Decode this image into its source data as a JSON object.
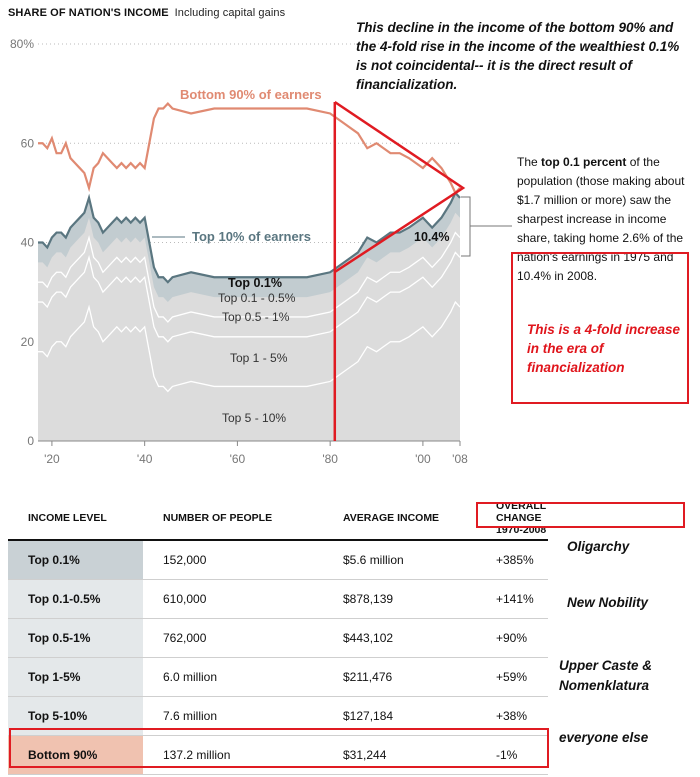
{
  "header": {
    "title": "SHARE OF NATION'S INCOME",
    "subtitle": "Including capital gains"
  },
  "annotation_top": "This decline in the income of the bottom 90% and the 4-fold rise in the income of the wealthiest 0.1% is not coincidental-- it is the direct result of financialization.",
  "note": {
    "lead": "The",
    "bold": "top 0.1 percent",
    "rest": "of the population (those making about $1.7 million or more) saw the sharpest increase in income share, taking home 2.6% of the nation's earnings in 1975 and 10.4% in 2008."
  },
  "red_note": "This is a 4-fold increase in the era of financialization",
  "colors": {
    "bottom90": "#e08a72",
    "top10": "#5a7680",
    "top10_fill": "#c2ccd0",
    "bands": "#dcdcdc",
    "grid": "#bbbbbb",
    "red": "#e01b22",
    "row_top01": "#c9d1d5",
    "row_bottom90": "#f0c2b0"
  },
  "chart_data": {
    "type": "area",
    "title": "SHARE OF NATION'S INCOME",
    "subtitle": "Including capital gains",
    "ylim": [
      0,
      80
    ],
    "yticks": [
      "0",
      "20",
      "40",
      "60",
      "80%"
    ],
    "xlim": [
      1917,
      2008
    ],
    "xticks": [
      "'20",
      "'40",
      "'60",
      "'80",
      "'00",
      "'08"
    ],
    "xtick_years": [
      1920,
      1940,
      1960,
      1980,
      2000,
      2008
    ],
    "annotation_value": "10.4%",
    "marker_year": 1981,
    "series": [
      {
        "name": "Bottom 90% of earners",
        "label": "Bottom 90% of earners",
        "x": [
          1917,
          1918,
          1919,
          1920,
          1921,
          1922,
          1923,
          1924,
          1925,
          1926,
          1927,
          1928,
          1929,
          1930,
          1931,
          1932,
          1933,
          1934,
          1935,
          1936,
          1937,
          1938,
          1939,
          1940,
          1941,
          1942,
          1943,
          1944,
          1945,
          1946,
          1950,
          1955,
          1960,
          1965,
          1970,
          1975,
          1980,
          1983,
          1986,
          1988,
          1990,
          1993,
          1995,
          1997,
          2000,
          2002,
          2004,
          2006,
          2007,
          2008
        ],
        "values": [
          60,
          60,
          59,
          61,
          58,
          58,
          60,
          57,
          56,
          55,
          54,
          51,
          55,
          56,
          58,
          57,
          56,
          55,
          56,
          55,
          56,
          55,
          56,
          55,
          60,
          65,
          67,
          67,
          68,
          67,
          66,
          67,
          67,
          67,
          67,
          67,
          66,
          64,
          62,
          59,
          60,
          58,
          58,
          57,
          55,
          57,
          55,
          52,
          50,
          51
        ]
      },
      {
        "name": "Top 10% of earners",
        "label": "Top 10% of earners",
        "x": [
          1917,
          1918,
          1919,
          1920,
          1921,
          1922,
          1923,
          1924,
          1925,
          1926,
          1927,
          1928,
          1929,
          1930,
          1931,
          1932,
          1933,
          1934,
          1935,
          1936,
          1937,
          1938,
          1939,
          1940,
          1941,
          1942,
          1943,
          1944,
          1945,
          1946,
          1950,
          1955,
          1960,
          1965,
          1970,
          1975,
          1980,
          1983,
          1986,
          1988,
          1990,
          1993,
          1995,
          1997,
          2000,
          2002,
          2004,
          2006,
          2007,
          2008
        ],
        "values": [
          40,
          40,
          39,
          41,
          42,
          42,
          41,
          43,
          44,
          45,
          46,
          49,
          45,
          44,
          42,
          43,
          44,
          45,
          44,
          45,
          44,
          45,
          44,
          45,
          40,
          35,
          33,
          33,
          32,
          33,
          34,
          33,
          33,
          33,
          33,
          33,
          34,
          36,
          38,
          41,
          40,
          42,
          42,
          43,
          45,
          43,
          45,
          48,
          50,
          49
        ]
      },
      {
        "name": "Top 0.1%",
        "label": "Top 0.1%",
        "x": [
          1917,
          1920,
          1925,
          1928,
          1932,
          1940,
          1945,
          1950,
          1960,
          1970,
          1975,
          1980,
          1985,
          1990,
          1995,
          2000,
          2005,
          2008
        ],
        "values": [
          7,
          6,
          8,
          10,
          7,
          5,
          3,
          3,
          3,
          2.8,
          2.6,
          3.4,
          4.5,
          5.5,
          6.5,
          9,
          9.5,
          10.4
        ]
      }
    ],
    "band_labels": [
      "Top 0.1%",
      "Top 0.1 - 0.5%",
      "Top 0.5 - 1%",
      "Top 1 - 5%",
      "Top 5 - 10%"
    ]
  },
  "table": {
    "headers": [
      "INCOME LEVEL",
      "NUMBER OF PEOPLE",
      "AVERAGE INCOME",
      "OVERALL CHANGE 1970-2008"
    ],
    "rows": [
      {
        "level": "Top 0.1%",
        "people": "152,000",
        "income": "$5.6 million",
        "change": "+385%"
      },
      {
        "level": "Top 0.1-0.5%",
        "people": "610,000",
        "income": "$878,139",
        "change": "+141%"
      },
      {
        "level": "Top 0.5-1%",
        "people": "762,000",
        "income": "$443,102",
        "change": "+90%"
      },
      {
        "level": "Top 1-5%",
        "people": "6.0 million",
        "income": "$211,476",
        "change": "+59%"
      },
      {
        "level": "Top 5-10%",
        "people": "7.6 million",
        "income": "$127,184",
        "change": "+38%"
      },
      {
        "level": "Bottom 90%",
        "people": "137.2 million",
        "income": "$31,244",
        "change": "-1%"
      }
    ]
  },
  "side_labels": {
    "oligarchy": "Oligarchy",
    "new_nobility": "New Nobility",
    "upper_caste_1": "Upper Caste &",
    "upper_caste_2": "Nomenklatura",
    "everyone_else": "everyone else"
  }
}
